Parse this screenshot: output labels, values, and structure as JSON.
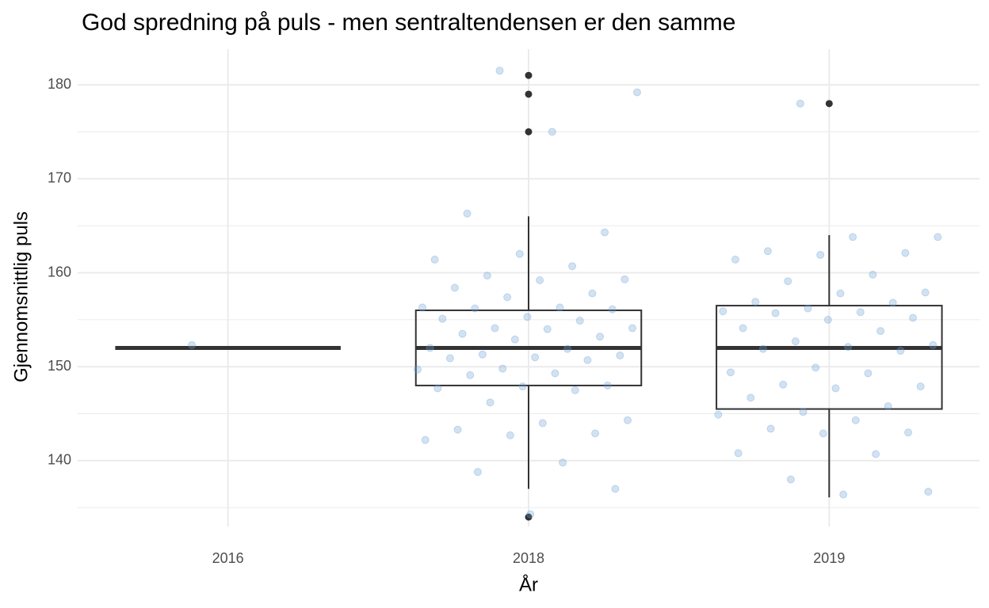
{
  "chart_data": {
    "type": "box",
    "title": "God spredning på puls - men sentraltendensen er den samme",
    "x_label": "År",
    "y_label": "Gjennomsnittlig puls",
    "categories": [
      "2016",
      "2018",
      "2019"
    ],
    "ylim": [
      133,
      183.8
    ],
    "yticks": [
      140,
      150,
      160,
      170,
      180
    ],
    "minor_yticks": [
      135,
      145,
      155,
      165,
      175
    ],
    "grid": true,
    "box_color": "#333333",
    "outlier_color": "#333333",
    "point_color": "#6a9fd3",
    "boxes": [
      {
        "min": 152,
        "q1": 152,
        "median": 152,
        "q3": 152,
        "max": 152,
        "outliers": [],
        "points": [
          152.3
        ]
      },
      {
        "min": 137,
        "q1": 148,
        "median": 152,
        "q3": 156,
        "max": 166,
        "outliers": [
          181,
          179,
          175,
          134
        ],
        "points": [
          181.5,
          179.2,
          175.0,
          166.3,
          164.3,
          162.0,
          161.4,
          160.7,
          159.7,
          159.3,
          159.2,
          158.4,
          157.8,
          157.4,
          156.3,
          156.3,
          156.2,
          156.1,
          155.3,
          155.1,
          154.9,
          154.1,
          154.1,
          154.0,
          153.5,
          153.2,
          152.9,
          152.0,
          151.9,
          151.3,
          151.2,
          151.0,
          150.9,
          150.7,
          149.8,
          149.7,
          149.3,
          149.1,
          148.0,
          147.9,
          147.7,
          147.5,
          146.2,
          144.3,
          144.0,
          143.3,
          142.9,
          142.7,
          142.2,
          139.8,
          138.8,
          137.0,
          134.3
        ]
      },
      {
        "min": 136.1,
        "q1": 145.5,
        "median": 152,
        "q3": 156.5,
        "max": 164,
        "outliers": [
          178
        ],
        "points": [
          178.0,
          163.8,
          163.8,
          162.3,
          162.1,
          161.9,
          161.4,
          159.8,
          159.1,
          157.9,
          157.8,
          156.9,
          156.8,
          156.2,
          155.9,
          155.8,
          155.7,
          155.2,
          155.0,
          154.1,
          153.8,
          152.7,
          152.3,
          152.1,
          151.9,
          151.7,
          149.9,
          149.4,
          149.3,
          148.1,
          147.9,
          147.7,
          146.7,
          145.8,
          145.2,
          144.9,
          144.3,
          143.4,
          143.0,
          142.9,
          140.8,
          140.7,
          138.0,
          136.7,
          136.4
        ]
      }
    ]
  }
}
